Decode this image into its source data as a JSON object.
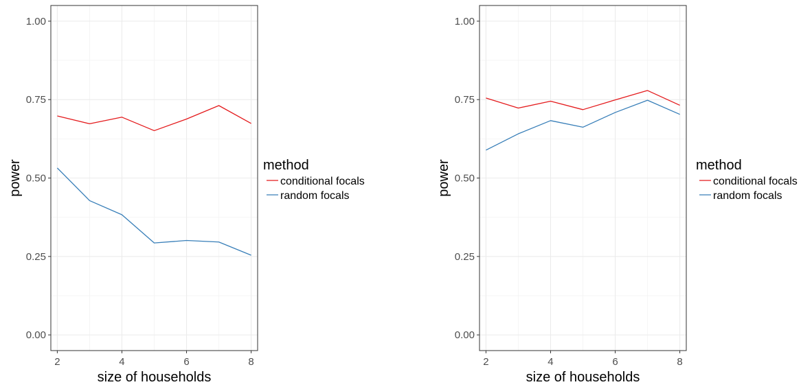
{
  "chart_data": [
    {
      "type": "line",
      "xlabel": "size of households",
      "ylabel": "power",
      "xlim": [
        1.8,
        8.2
      ],
      "ylim": [
        -0.05,
        1.05
      ],
      "x_ticks": [
        2,
        4,
        6,
        8
      ],
      "y_ticks": [
        0.0,
        0.25,
        0.5,
        0.75,
        1.0
      ],
      "y_tick_labels": [
        "0.00",
        "0.25",
        "0.50",
        "0.75",
        "1.00"
      ],
      "grid": true,
      "legend": {
        "title": "method",
        "position": "right",
        "entries": [
          {
            "label": "conditional focals",
            "color": "#e41a1c"
          },
          {
            "label": "random focals",
            "color": "#377eb8"
          }
        ]
      },
      "x": [
        2,
        3,
        4,
        5,
        6,
        7,
        8
      ],
      "series": [
        {
          "name": "conditional focals",
          "color": "#e41a1c",
          "values": [
            0.698,
            0.673,
            0.694,
            0.651,
            0.688,
            0.731,
            0.674
          ]
        },
        {
          "name": "random focals",
          "color": "#377eb8",
          "values": [
            0.532,
            0.428,
            0.383,
            0.293,
            0.301,
            0.296,
            0.254
          ]
        }
      ]
    },
    {
      "type": "line",
      "xlabel": "size of households",
      "ylabel": "power",
      "xlim": [
        1.8,
        8.2
      ],
      "ylim": [
        -0.05,
        1.05
      ],
      "x_ticks": [
        2,
        4,
        6,
        8
      ],
      "y_ticks": [
        0.0,
        0.25,
        0.5,
        0.75,
        1.0
      ],
      "y_tick_labels": [
        "0.00",
        "0.25",
        "0.50",
        "0.75",
        "1.00"
      ],
      "grid": true,
      "legend": {
        "title": "method",
        "position": "right",
        "entries": [
          {
            "label": "conditional focals",
            "color": "#e41a1c"
          },
          {
            "label": "random focals",
            "color": "#377eb8"
          }
        ]
      },
      "x": [
        2,
        3,
        4,
        5,
        6,
        7,
        8
      ],
      "series": [
        {
          "name": "conditional focals",
          "color": "#e41a1c",
          "values": [
            0.755,
            0.723,
            0.745,
            0.718,
            0.749,
            0.779,
            0.732
          ]
        },
        {
          "name": "random focals",
          "color": "#377eb8",
          "values": [
            0.589,
            0.641,
            0.683,
            0.662,
            0.709,
            0.748,
            0.703
          ]
        }
      ]
    }
  ]
}
